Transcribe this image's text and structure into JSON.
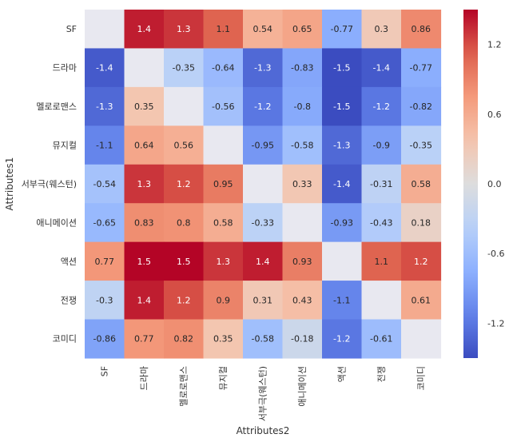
{
  "chart_data": {
    "type": "heatmap",
    "title": "",
    "xlabel": "Attributes2",
    "ylabel": "Attributes1",
    "x_categories": [
      "SF",
      "드라마",
      "멜로로맨스",
      "뮤지컬",
      "서부극(웨스턴)",
      "애니메이션",
      "액션",
      "전쟁",
      "코미디"
    ],
    "y_categories": [
      "SF",
      "드라마",
      "멜로로맨스",
      "뮤지컬",
      "서부극(웨스턴)",
      "애니메이션",
      "액션",
      "전쟁",
      "코미디"
    ],
    "values": [
      [
        null,
        1.4,
        1.3,
        1.1,
        0.54,
        0.65,
        -0.77,
        0.3,
        0.86
      ],
      [
        -1.4,
        null,
        -0.35,
        -0.64,
        -1.3,
        -0.83,
        -1.5,
        -1.4,
        -0.77
      ],
      [
        -1.3,
        0.35,
        null,
        -0.56,
        -1.2,
        -0.8,
        -1.5,
        -1.2,
        -0.82
      ],
      [
        -1.1,
        0.64,
        0.56,
        null,
        -0.95,
        -0.58,
        -1.3,
        -0.9,
        -0.35
      ],
      [
        -0.54,
        1.3,
        1.2,
        0.95,
        null,
        0.33,
        -1.4,
        -0.31,
        0.58
      ],
      [
        -0.65,
        0.83,
        0.8,
        0.58,
        -0.33,
        null,
        -0.93,
        -0.43,
        0.18
      ],
      [
        0.77,
        1.5,
        1.5,
        1.3,
        1.4,
        0.93,
        null,
        1.1,
        1.2
      ],
      [
        -0.3,
        1.4,
        1.2,
        0.9,
        0.31,
        0.43,
        -1.1,
        null,
        0.61
      ],
      [
        -0.86,
        0.77,
        0.82,
        0.35,
        -0.58,
        -0.18,
        -1.2,
        -0.61,
        null
      ]
    ],
    "cell_labels": [
      [
        "",
        "1.4",
        "1.3",
        "1.1",
        "0.54",
        "0.65",
        "-0.77",
        "0.3",
        "0.86"
      ],
      [
        "-1.4",
        "",
        "-0.35",
        "-0.64",
        "-1.3",
        "-0.83",
        "-1.5",
        "-1.4",
        "-0.77"
      ],
      [
        "-1.3",
        "0.35",
        "",
        "-0.56",
        "-1.2",
        "-0.8",
        "-1.5",
        "-1.2",
        "-0.82"
      ],
      [
        "-1.1",
        "0.64",
        "0.56",
        "",
        "-0.95",
        "-0.58",
        "-1.3",
        "-0.9",
        "-0.35"
      ],
      [
        "-0.54",
        "1.3",
        "1.2",
        "0.95",
        "",
        "0.33",
        "-1.4",
        "-0.31",
        "0.58"
      ],
      [
        "-0.65",
        "0.83",
        "0.8",
        "0.58",
        "-0.33",
        "",
        "-0.93",
        "-0.43",
        "0.18"
      ],
      [
        "0.77",
        "1.5",
        "1.5",
        "1.3",
        "1.4",
        "0.93",
        "",
        "1.1",
        "1.2"
      ],
      [
        "-0.3",
        "1.4",
        "1.2",
        "0.9",
        "0.31",
        "0.43",
        "-1.1",
        "",
        "0.61"
      ],
      [
        "-0.86",
        "0.77",
        "0.82",
        "0.35",
        "-0.58",
        "-0.18",
        "-1.2",
        "-0.61",
        ""
      ]
    ],
    "diagonal_color": "#e8e8f0",
    "colormap": "coolwarm",
    "vmin": -1.5,
    "vmax": 1.5,
    "colorbar": {
      "ticks": [
        1.2,
        0.6,
        0.0,
        -0.6,
        -1.2
      ],
      "tick_labels": [
        "1.2",
        "0.6",
        "0.0",
        "-0.6",
        "-1.2"
      ]
    },
    "grid": false
  }
}
